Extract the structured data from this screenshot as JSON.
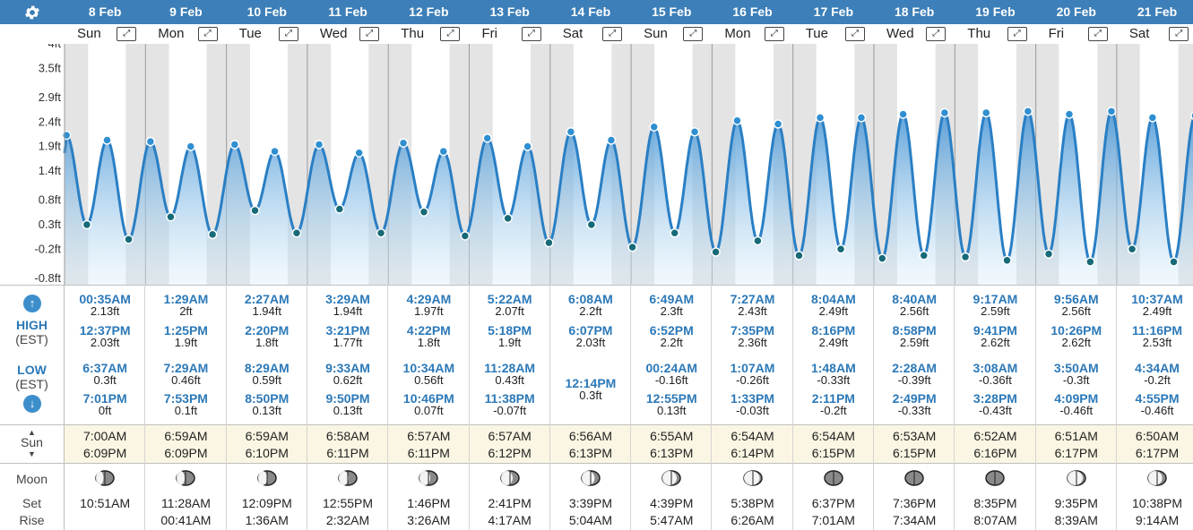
{
  "toolbar": {
    "settings_icon": "gear-icon"
  },
  "y_axis": {
    "labels": [
      "4ft",
      "3.5ft",
      "2.9ft",
      "2.4ft",
      "1.9ft",
      "1.4ft",
      "0.8ft",
      "0.3ft",
      "-0.2ft",
      "-0.8ft"
    ],
    "ticks": [
      4.0,
      3.5,
      2.9,
      2.4,
      1.9,
      1.4,
      0.8,
      0.3,
      -0.2,
      -0.8
    ]
  },
  "row_labels": {
    "high": "HIGH",
    "high_tz": "(EST)",
    "low": "LOW",
    "low_tz": "(EST)",
    "sun": "Sun",
    "moon": "Moon",
    "set": "Set",
    "rise": "Rise"
  },
  "days": [
    {
      "date": "8 Feb",
      "dow": "Sun",
      "high": [
        [
          "00:35AM",
          "2.13ft"
        ],
        [
          "12:37PM",
          "2.03ft"
        ]
      ],
      "low": [
        [
          "6:37AM",
          "0.3ft"
        ],
        [
          "7:01PM",
          "0ft"
        ]
      ],
      "sunrise": "7:00AM",
      "sunset": "6:09PM",
      "moonset": "10:51AM",
      "moonrise": ""
    },
    {
      "date": "9 Feb",
      "dow": "Mon",
      "high": [
        [
          "1:29AM",
          "2ft"
        ],
        [
          "1:25PM",
          "1.9ft"
        ]
      ],
      "low": [
        [
          "7:29AM",
          "0.46ft"
        ],
        [
          "7:53PM",
          "0.1ft"
        ]
      ],
      "sunrise": "6:59AM",
      "sunset": "6:09PM",
      "moonset": "11:28AM",
      "moonrise": "00:41AM"
    },
    {
      "date": "10 Feb",
      "dow": "Tue",
      "high": [
        [
          "2:27AM",
          "1.94ft"
        ],
        [
          "2:20PM",
          "1.8ft"
        ]
      ],
      "low": [
        [
          "8:29AM",
          "0.59ft"
        ],
        [
          "8:50PM",
          "0.13ft"
        ]
      ],
      "sunrise": "6:59AM",
      "sunset": "6:10PM",
      "moonset": "12:09PM",
      "moonrise": "1:36AM"
    },
    {
      "date": "11 Feb",
      "dow": "Wed",
      "high": [
        [
          "3:29AM",
          "1.94ft"
        ],
        [
          "3:21PM",
          "1.77ft"
        ]
      ],
      "low": [
        [
          "9:33AM",
          "0.62ft"
        ],
        [
          "9:50PM",
          "0.13ft"
        ]
      ],
      "sunrise": "6:58AM",
      "sunset": "6:11PM",
      "moonset": "12:55PM",
      "moonrise": "2:32AM"
    },
    {
      "date": "12 Feb",
      "dow": "Thu",
      "high": [
        [
          "4:29AM",
          "1.97ft"
        ],
        [
          "4:22PM",
          "1.8ft"
        ]
      ],
      "low": [
        [
          "10:34AM",
          "0.56ft"
        ],
        [
          "10:46PM",
          "0.07ft"
        ]
      ],
      "sunrise": "6:57AM",
      "sunset": "6:11PM",
      "moonset": "1:46PM",
      "moonrise": "3:26AM"
    },
    {
      "date": "13 Feb",
      "dow": "Fri",
      "high": [
        [
          "5:22AM",
          "2.07ft"
        ],
        [
          "5:18PM",
          "1.9ft"
        ]
      ],
      "low": [
        [
          "11:28AM",
          "0.43ft"
        ],
        [
          "11:38PM",
          "-0.07ft"
        ]
      ],
      "sunrise": "6:57AM",
      "sunset": "6:12PM",
      "moonset": "2:41PM",
      "moonrise": "4:17AM"
    },
    {
      "date": "14 Feb",
      "dow": "Sat",
      "high": [
        [
          "6:08AM",
          "2.2ft"
        ],
        [
          "6:07PM",
          "2.03ft"
        ]
      ],
      "low": [
        [
          "12:14PM",
          "0.3ft"
        ]
      ],
      "sunrise": "6:56AM",
      "sunset": "6:13PM",
      "moonset": "3:39PM",
      "moonrise": "5:04AM"
    },
    {
      "date": "15 Feb",
      "dow": "Sun",
      "high": [
        [
          "6:49AM",
          "2.3ft"
        ],
        [
          "6:52PM",
          "2.2ft"
        ]
      ],
      "low": [
        [
          "00:24AM",
          "-0.16ft"
        ],
        [
          "12:55PM",
          "0.13ft"
        ]
      ],
      "sunrise": "6:55AM",
      "sunset": "6:13PM",
      "moonset": "4:39PM",
      "moonrise": "5:47AM"
    },
    {
      "date": "16 Feb",
      "dow": "Mon",
      "high": [
        [
          "7:27AM",
          "2.43ft"
        ],
        [
          "7:35PM",
          "2.36ft"
        ]
      ],
      "low": [
        [
          "1:07AM",
          "-0.26ft"
        ],
        [
          "1:33PM",
          "-0.03ft"
        ]
      ],
      "sunrise": "6:54AM",
      "sunset": "6:14PM",
      "moonset": "5:38PM",
      "moonrise": "6:26AM"
    },
    {
      "date": "17 Feb",
      "dow": "Tue",
      "high": [
        [
          "8:04AM",
          "2.49ft"
        ],
        [
          "8:16PM",
          "2.49ft"
        ]
      ],
      "low": [
        [
          "1:48AM",
          "-0.33ft"
        ],
        [
          "2:11PM",
          "-0.2ft"
        ]
      ],
      "sunrise": "6:54AM",
      "sunset": "6:15PM",
      "moonset": "6:37PM",
      "moonrise": "7:01AM"
    },
    {
      "date": "18 Feb",
      "dow": "Wed",
      "high": [
        [
          "8:40AM",
          "2.56ft"
        ],
        [
          "8:58PM",
          "2.59ft"
        ]
      ],
      "low": [
        [
          "2:28AM",
          "-0.39ft"
        ],
        [
          "2:49PM",
          "-0.33ft"
        ]
      ],
      "sunrise": "6:53AM",
      "sunset": "6:15PM",
      "moonset": "7:36PM",
      "moonrise": "7:34AM"
    },
    {
      "date": "19 Feb",
      "dow": "Thu",
      "high": [
        [
          "9:17AM",
          "2.59ft"
        ],
        [
          "9:41PM",
          "2.62ft"
        ]
      ],
      "low": [
        [
          "3:08AM",
          "-0.36ft"
        ],
        [
          "3:28PM",
          "-0.43ft"
        ]
      ],
      "sunrise": "6:52AM",
      "sunset": "6:16PM",
      "moonset": "8:35PM",
      "moonrise": "8:07AM"
    },
    {
      "date": "20 Feb",
      "dow": "Fri",
      "high": [
        [
          "9:56AM",
          "2.56ft"
        ],
        [
          "10:26PM",
          "2.62ft"
        ]
      ],
      "low": [
        [
          "3:50AM",
          "-0.3ft"
        ],
        [
          "4:09PM",
          "-0.46ft"
        ]
      ],
      "sunrise": "6:51AM",
      "sunset": "6:17PM",
      "moonset": "9:35PM",
      "moonrise": "8:39AM"
    },
    {
      "date": "21 Feb",
      "dow": "Sat",
      "high": [
        [
          "10:37AM",
          "2.49ft"
        ],
        [
          "11:16PM",
          "2.53ft"
        ]
      ],
      "low": [
        [
          "4:34AM",
          "-0.2ft"
        ],
        [
          "4:55PM",
          "-0.46ft"
        ]
      ],
      "sunrise": "6:50AM",
      "sunset": "6:17PM",
      "moonset": "10:38PM",
      "moonrise": "9:14AM"
    }
  ],
  "moon_phases": [
    0.42,
    0.45,
    0.5,
    0.55,
    0.6,
    0.65,
    0.72,
    0.8,
    0.88,
    0.95,
    0.98,
    0.92,
    0.85,
    0.78
  ],
  "colors": {
    "header": "#3d7fb8",
    "tide_line": "#2a7fc4",
    "tide_fill": "#6fb6e6",
    "point": "#176a78",
    "high_text": "#2c79b8",
    "night": "#e4e4e4",
    "sun_band": "#fbf6e3"
  }
}
